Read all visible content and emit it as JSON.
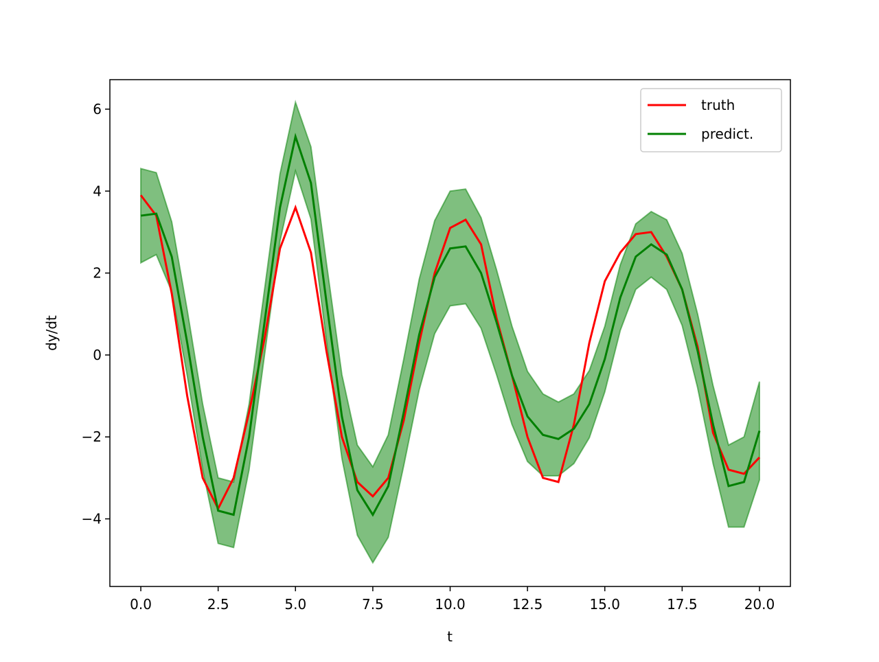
{
  "chart_data": {
    "type": "line",
    "xlabel": "t",
    "ylabel": "dy/dt",
    "x": [
      0,
      0.5,
      1,
      1.5,
      2,
      2.5,
      3,
      3.5,
      4,
      4.5,
      5,
      5.5,
      6,
      6.5,
      7,
      7.5,
      8,
      8.5,
      9,
      9.5,
      10,
      10.5,
      11,
      11.5,
      12,
      12.5,
      13,
      13.5,
      14,
      14.5,
      15,
      15.5,
      16,
      16.5,
      17,
      17.5,
      18,
      18.5,
      19,
      19.5,
      20
    ],
    "series": [
      {
        "name": "truth",
        "color": "#ff0000",
        "values": [
          3.9,
          3.4,
          1.5,
          -1.0,
          -3.0,
          -3.75,
          -3.0,
          -1.4,
          0.4,
          2.6,
          3.6,
          2.5,
          0.1,
          -2.0,
          -3.1,
          -3.45,
          -3.0,
          -1.6,
          0.3,
          2.0,
          3.1,
          3.3,
          2.7,
          0.9,
          -0.5,
          -2.0,
          -3.0,
          -3.1,
          -1.7,
          0.3,
          1.8,
          2.5,
          2.95,
          3.0,
          2.4,
          1.6,
          0.2,
          -1.9,
          -2.8,
          -2.9,
          -2.5
        ]
      },
      {
        "name": "predict.",
        "color": "#008000",
        "values": [
          3.4,
          3.45,
          2.4,
          0.3,
          -2.0,
          -3.8,
          -3.9,
          -2.0,
          0.8,
          3.6,
          5.33,
          4.2,
          1.3,
          -1.5,
          -3.3,
          -3.9,
          -3.2,
          -1.4,
          0.5,
          1.9,
          2.6,
          2.65,
          2.0,
          0.8,
          -0.5,
          -1.5,
          -1.95,
          -2.05,
          -1.8,
          -1.2,
          -0.1,
          1.4,
          2.4,
          2.7,
          2.45,
          1.6,
          0.1,
          -1.7,
          -3.2,
          -3.1,
          -1.85
        ]
      }
    ],
    "band": {
      "color": "#008000",
      "upper": [
        4.55,
        4.45,
        3.25,
        1.1,
        -1.2,
        -3.0,
        -3.1,
        -1.2,
        1.6,
        4.42,
        6.17,
        5.08,
        2.25,
        -0.48,
        -2.2,
        -2.73,
        -1.95,
        -0.1,
        1.85,
        3.28,
        4.0,
        4.05,
        3.35,
        2.08,
        0.7,
        -0.4,
        -0.95,
        -1.15,
        -0.95,
        -0.38,
        0.7,
        2.2,
        3.2,
        3.5,
        3.3,
        2.48,
        1.0,
        -0.75,
        -2.2,
        -2.0,
        -0.65
      ],
      "lower": [
        2.25,
        2.45,
        1.55,
        -0.5,
        -2.8,
        -4.6,
        -4.7,
        -2.8,
        0.0,
        2.78,
        4.49,
        3.32,
        0.35,
        -2.52,
        -4.4,
        -5.07,
        -4.45,
        -2.7,
        -0.85,
        0.52,
        1.2,
        1.25,
        0.65,
        -0.48,
        -1.7,
        -2.6,
        -2.95,
        -2.95,
        -2.65,
        -2.02,
        -0.9,
        0.6,
        1.6,
        1.9,
        1.6,
        0.72,
        -0.8,
        -2.65,
        -4.2,
        -4.2,
        -3.05
      ]
    },
    "xlim": [
      -1,
      21
    ],
    "ylim": [
      -5.65,
      6.72
    ],
    "xticks": [
      {
        "value": 0,
        "label": "0.0"
      },
      2.5,
      {
        "value": 5,
        "label": "5.0"
      },
      7.5,
      {
        "value": 10,
        "label": "10.0"
      },
      12.5,
      {
        "value": 15,
        "label": "15.0"
      },
      17.5,
      {
        "value": 20,
        "label": "20.0"
      }
    ],
    "yticks": [
      {
        "value": -4,
        "label": "−4"
      },
      {
        "value": -2,
        "label": "−2"
      },
      0,
      2,
      4,
      6
    ],
    "legend": "upper right"
  }
}
